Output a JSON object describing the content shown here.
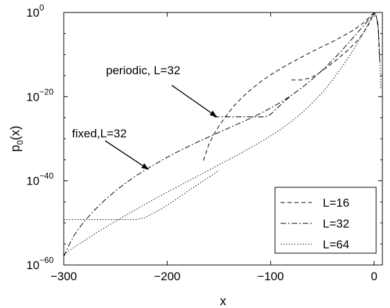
{
  "chart_data": {
    "type": "line",
    "xlabel": "x",
    "ylabel": "p",
    "ylabel_sub": "0",
    "ylabel_tail": "(x)",
    "xlim": [
      -300,
      8
    ],
    "ylim_log10": [
      -60,
      0
    ],
    "y_scale": "log",
    "grid": false,
    "legend_position": "bottom-right",
    "x_ticks": [
      {
        "value": -300,
        "label": "−300"
      },
      {
        "value": -200,
        "label": "−200"
      },
      {
        "value": -100,
        "label": "−100"
      },
      {
        "value": 0,
        "label": "0"
      }
    ],
    "y_ticks": [
      {
        "value": -60,
        "base": "10",
        "exp": "−60"
      },
      {
        "value": -40,
        "base": "10",
        "exp": "−40"
      },
      {
        "value": -20,
        "base": "10",
        "exp": "−20"
      },
      {
        "value": 0,
        "base": "10",
        "exp": "0"
      }
    ],
    "series": [
      {
        "name": "L=16",
        "dash": "6,4",
        "segments": [
          [
            [
              -165,
              -35.2
            ],
            [
              -160,
              -31.5
            ],
            [
              -155,
              -29
            ],
            [
              -150,
              -27
            ],
            [
              -145,
              -25.2
            ],
            [
              -140,
              -23.6
            ],
            [
              -135,
              -22.1
            ],
            [
              -130,
              -20.8
            ],
            [
              -125,
              -19.6
            ],
            [
              -120,
              -18.5
            ],
            [
              -110,
              -16.5
            ],
            [
              -100,
              -14.8
            ],
            [
              -90,
              -13.3
            ],
            [
              -80,
              -11.9
            ],
            [
              -70,
              -10.6
            ],
            [
              -60,
              -9.3
            ],
            [
              -50,
              -8.1
            ],
            [
              -40,
              -6.9
            ],
            [
              -30,
              -5.6
            ],
            [
              -20,
              -4.2
            ],
            [
              -10,
              -2.4
            ],
            [
              -4,
              -1.0
            ],
            [
              0,
              -0.05
            ],
            [
              2,
              -0.8
            ],
            [
              4,
              -3.5
            ],
            [
              5.5,
              -12
            ]
          ],
          [
            [
              -80,
              -16
            ],
            [
              -70,
              -16
            ],
            [
              -62,
              -15.6
            ],
            [
              -55,
              -14.7
            ],
            [
              -45,
              -12.9
            ],
            [
              -35,
              -11.0
            ],
            [
              -25,
              -8.9
            ],
            [
              -15,
              -6.4
            ],
            [
              -8,
              -4.0
            ],
            [
              -3,
              -1.8
            ],
            [
              0,
              -0.05
            ]
          ]
        ]
      },
      {
        "name": "L=32",
        "dash": "8,3,2,3",
        "segments": [
          [
            [
              -300,
              -58
            ],
            [
              -295,
              -55.3
            ],
            [
              -290,
              -53
            ],
            [
              -285,
              -51.2
            ],
            [
              -280,
              -49.6
            ],
            [
              -270,
              -46.9
            ],
            [
              -260,
              -44.5
            ],
            [
              -250,
              -42.4
            ],
            [
              -240,
              -40.5
            ],
            [
              -230,
              -38.8
            ],
            [
              -220,
              -37.2
            ],
            [
              -210,
              -35.8
            ],
            [
              -200,
              -34.4
            ],
            [
              -190,
              -33.1
            ],
            [
              -180,
              -31.9
            ],
            [
              -170,
              -30.7
            ],
            [
              -160,
              -29.6
            ],
            [
              -150,
              -28.5
            ],
            [
              -140,
              -27.4
            ],
            [
              -130,
              -26.3
            ],
            [
              -120,
              -25.2
            ],
            [
              -110,
              -24.0
            ],
            [
              -100,
              -22.7
            ],
            [
              -90,
              -21.3
            ],
            [
              -80,
              -19.7
            ],
            [
              -70,
              -17.9
            ],
            [
              -60,
              -15.9
            ],
            [
              -50,
              -13.7
            ],
            [
              -40,
              -11.3
            ],
            [
              -30,
              -8.7
            ],
            [
              -20,
              -5.9
            ],
            [
              -10,
              -3.1
            ],
            [
              -4,
              -1.3
            ],
            [
              0,
              -0.05
            ],
            [
              2,
              -0.7
            ],
            [
              4,
              -3.0
            ],
            [
              5.5,
              -12
            ]
          ],
          [
            [
              -155,
              -24.8
            ],
            [
              -145,
              -24.8
            ],
            [
              -135,
              -24.8
            ],
            [
              -125,
              -24.8
            ],
            [
              -115,
              -24.8
            ],
            [
              -105,
              -24.8
            ],
            [
              -100,
              -24.2
            ],
            [
              -95,
              -23.0
            ],
            [
              -90,
              -21.9
            ],
            [
              -80,
              -19.7
            ]
          ]
        ]
      },
      {
        "name": "L=64",
        "dash": "1.5,2.5",
        "segments": [
          [
            [
              -300,
              -57.5
            ],
            [
              -290,
              -55.8
            ],
            [
              -280,
              -54.2
            ],
            [
              -270,
              -52.6
            ],
            [
              -260,
              -51.1
            ],
            [
              -250,
              -49.6
            ],
            [
              -240,
              -48.2
            ],
            [
              -230,
              -46.8
            ],
            [
              -220,
              -45.4
            ],
            [
              -210,
              -44.0
            ],
            [
              -200,
              -42.7
            ],
            [
              -190,
              -41.4
            ],
            [
              -180,
              -40.1
            ],
            [
              -170,
              -38.8
            ],
            [
              -160,
              -37.5
            ],
            [
              -150,
              -36.2
            ],
            [
              -140,
              -34.9
            ],
            [
              -130,
              -33.6
            ],
            [
              -120,
              -32.2
            ],
            [
              -110,
              -30.8
            ],
            [
              -100,
              -29.3
            ],
            [
              -90,
              -27.7
            ],
            [
              -80,
              -25.9
            ],
            [
              -70,
              -23.9
            ],
            [
              -60,
              -21.6
            ],
            [
              -50,
              -19.0
            ],
            [
              -40,
              -16.0
            ],
            [
              -30,
              -12.6
            ],
            [
              -20,
              -8.9
            ],
            [
              -10,
              -4.7
            ],
            [
              -4,
              -1.9
            ],
            [
              0,
              -0.05
            ],
            [
              2,
              -0.9
            ],
            [
              4,
              -3.8
            ],
            [
              5.5,
              -12
            ],
            [
              6.5,
              -18
            ]
          ],
          [
            [
              -300,
              -49.2
            ],
            [
              -290,
              -49.2
            ],
            [
              -280,
              -49.2
            ],
            [
              -270,
              -49.2
            ],
            [
              -260,
              -49.2
            ],
            [
              -250,
              -49.2
            ],
            [
              -240,
              -49.2
            ],
            [
              -230,
              -49.2
            ],
            [
              -222,
              -48.8
            ],
            [
              -215,
              -47.9
            ],
            [
              -205,
              -46.6
            ],
            [
              -195,
              -45.0
            ],
            [
              -185,
              -43.3
            ],
            [
              -175,
              -41.6
            ],
            [
              -165,
              -40.0
            ],
            [
              -155,
              -38.4
            ],
            [
              -150,
              -37.5
            ]
          ]
        ]
      }
    ],
    "annotations": [
      {
        "text": "periodic, L=32",
        "arrow_to": [
          -152,
          -24.8
        ]
      },
      {
        "text": "fixed,L=32",
        "arrow_to": [
          -218,
          -37.3
        ]
      }
    ]
  }
}
